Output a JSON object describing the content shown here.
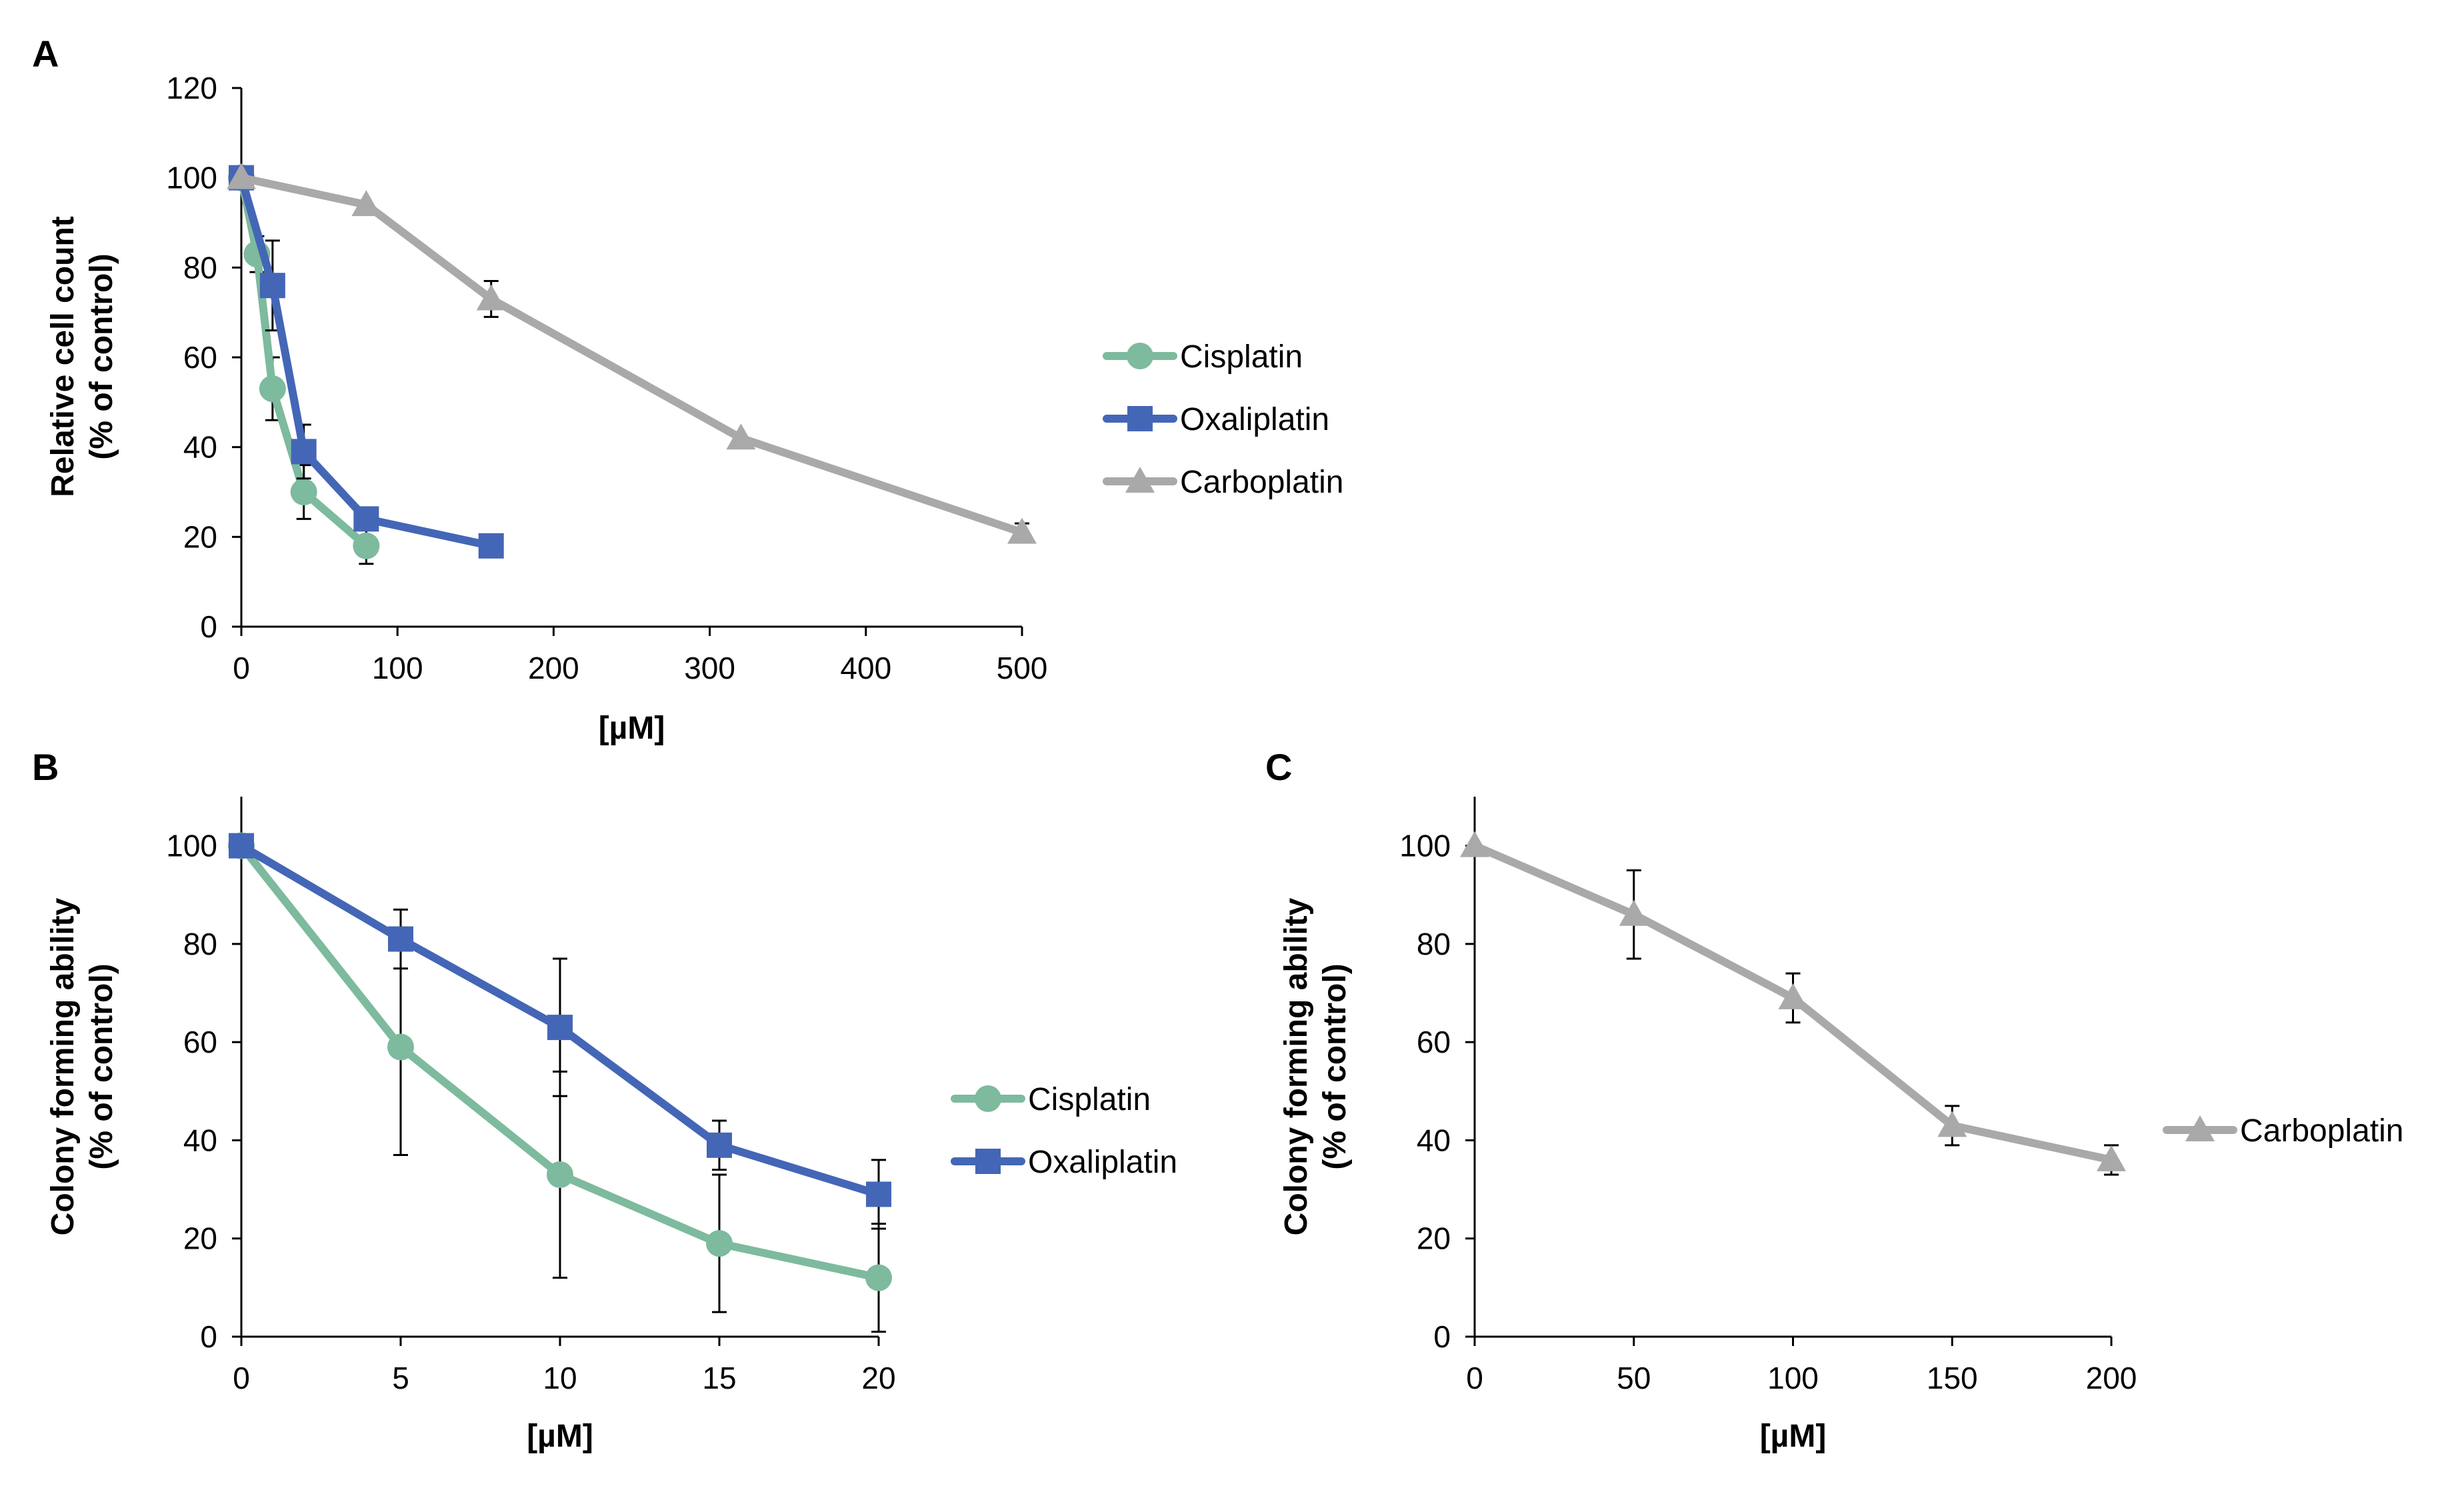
{
  "colors": {
    "cisplatin": "#7dba9e",
    "oxaliplatin": "#4466b6",
    "carboplatin": "#a9a9a9",
    "axis": "#000000"
  },
  "chart_data": [
    {
      "panel": "A",
      "type": "line",
      "xlabel": "[µM]",
      "ylabel": [
        "Relative cell count",
        "(% of control)"
      ],
      "xlim": [
        0,
        500
      ],
      "ylim": [
        0,
        120
      ],
      "xticks": [
        0,
        100,
        200,
        300,
        400,
        500
      ],
      "yticks": [
        0,
        20,
        40,
        60,
        80,
        100,
        120
      ],
      "grid": false,
      "legend_position": "right",
      "series": [
        {
          "name": "Cisplatin",
          "marker": "circle",
          "color": "#7dba9e",
          "x": [
            0,
            10,
            20,
            40,
            80
          ],
          "y": [
            100,
            83,
            53,
            30,
            18
          ],
          "err": [
            0,
            4,
            7,
            6,
            4
          ]
        },
        {
          "name": "Oxaliplatin",
          "marker": "square",
          "color": "#4466b6",
          "x": [
            0,
            20,
            40,
            80,
            160
          ],
          "y": [
            100,
            76,
            39,
            24,
            18
          ],
          "err": [
            0,
            10,
            6,
            0,
            0
          ]
        },
        {
          "name": "Carboplatin",
          "marker": "triangle",
          "color": "#a9a9a9",
          "x": [
            0,
            80,
            160,
            320,
            500
          ],
          "y": [
            100,
            94,
            73,
            42,
            21
          ],
          "err": [
            0,
            0,
            4,
            0,
            2
          ]
        }
      ]
    },
    {
      "panel": "B",
      "type": "line",
      "xlabel": "[µM]",
      "ylabel": [
        "Colony forming ability",
        "(% of control)"
      ],
      "xlim": [
        0,
        20
      ],
      "ylim": [
        0,
        110
      ],
      "xticks": [
        0,
        5,
        10,
        15,
        20
      ],
      "yticks": [
        0,
        20,
        40,
        60,
        80,
        100
      ],
      "grid": false,
      "legend_position": "right",
      "series": [
        {
          "name": "Cisplatin",
          "marker": "circle",
          "color": "#7dba9e",
          "x": [
            0,
            5,
            10,
            15,
            20
          ],
          "y": [
            100,
            59,
            33,
            19,
            12
          ],
          "err": [
            0,
            22,
            21,
            14,
            11
          ]
        },
        {
          "name": "Oxaliplatin",
          "marker": "square",
          "color": "#4466b6",
          "x": [
            0,
            5,
            10,
            15,
            20
          ],
          "y": [
            100,
            81,
            63,
            39,
            29
          ],
          "err": [
            0,
            6,
            14,
            5,
            7
          ]
        }
      ]
    },
    {
      "panel": "C",
      "type": "line",
      "xlabel": "[µM]",
      "ylabel": [
        "Colony forming ability",
        "(% of control)"
      ],
      "xlim": [
        0,
        200
      ],
      "ylim": [
        0,
        110
      ],
      "xticks": [
        0,
        50,
        100,
        150,
        200
      ],
      "yticks": [
        0,
        20,
        40,
        60,
        80,
        100
      ],
      "grid": false,
      "legend_position": "right",
      "series": [
        {
          "name": "Carboplatin",
          "marker": "triangle",
          "color": "#a9a9a9",
          "x": [
            0,
            50,
            100,
            150,
            200
          ],
          "y": [
            100,
            86,
            69,
            43,
            36
          ],
          "err": [
            0,
            9,
            5,
            4,
            3
          ]
        }
      ]
    }
  ]
}
